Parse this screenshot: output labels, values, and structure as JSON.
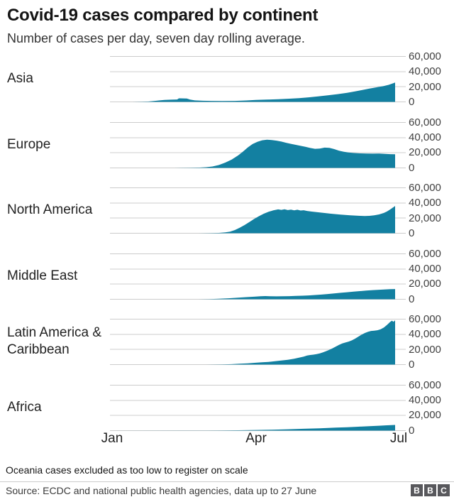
{
  "header": {
    "title": "Covid-19 cases compared by continent",
    "subtitle": "Number of cases per day, seven day rolling average."
  },
  "footnote": "Oceania cases excluded as too low to register on scale",
  "source": "Source: ECDC and national public health agencies, data up to 27 June",
  "logo": {
    "letters": [
      "B",
      "B",
      "C"
    ]
  },
  "colors": {
    "area_fill": "#1380a1",
    "gridline": "#cccccc",
    "title_text": "#141414",
    "tick_text": "#404040"
  },
  "chart_data": {
    "type": "area",
    "title": "Covid-19 cases compared by continent",
    "subtitle": "Number of cases per day, seven day rolling average.",
    "unit": "new cases per day, 7-day rolling average",
    "fill_color": "#1380a1",
    "grid": true,
    "x_axis": {
      "tick_labels": [
        "Jan",
        "Apr",
        "Jul"
      ],
      "tick_days": [
        0,
        91,
        182
      ],
      "domain_days_from_jan1": [
        0,
        182
      ],
      "data_end_day": 178,
      "data_end_label": "27 June"
    },
    "y_axis": {
      "ticks": [
        0,
        20000,
        40000,
        60000
      ],
      "tick_labels": [
        "0",
        "20,000",
        "40,000",
        "60,000"
      ],
      "max": 60000
    },
    "panels": [
      {
        "label": "Asia",
        "points": [
          [
            0,
            0
          ],
          [
            14,
            0
          ],
          [
            20,
            150
          ],
          [
            24,
            500
          ],
          [
            28,
            1300
          ],
          [
            31,
            2000
          ],
          [
            34,
            2500
          ],
          [
            38,
            2900
          ],
          [
            42,
            3200
          ],
          [
            43,
            4700
          ],
          [
            48,
            4500
          ],
          [
            50,
            3000
          ],
          [
            53,
            2000
          ],
          [
            58,
            1500
          ],
          [
            63,
            1300
          ],
          [
            70,
            1100
          ],
          [
            78,
            1300
          ],
          [
            85,
            1900
          ],
          [
            91,
            2500
          ],
          [
            98,
            3000
          ],
          [
            105,
            3500
          ],
          [
            112,
            4200
          ],
          [
            118,
            5000
          ],
          [
            124,
            6000
          ],
          [
            130,
            7200
          ],
          [
            136,
            8600
          ],
          [
            142,
            10200
          ],
          [
            148,
            12000
          ],
          [
            152,
            13500
          ],
          [
            157,
            15500
          ],
          [
            162,
            17500
          ],
          [
            167,
            19500
          ],
          [
            171,
            21000
          ],
          [
            174,
            22500
          ],
          [
            176,
            24000
          ],
          [
            178,
            25500
          ]
        ]
      },
      {
        "label": "Europe",
        "points": [
          [
            0,
            0
          ],
          [
            40,
            0
          ],
          [
            50,
            200
          ],
          [
            56,
            450
          ],
          [
            60,
            900
          ],
          [
            64,
            1900
          ],
          [
            68,
            3800
          ],
          [
            72,
            7000
          ],
          [
            76,
            11000
          ],
          [
            80,
            16500
          ],
          [
            83,
            21500
          ],
          [
            86,
            27000
          ],
          [
            89,
            31500
          ],
          [
            92,
            34500
          ],
          [
            95,
            36500
          ],
          [
            98,
            37200
          ],
          [
            101,
            36800
          ],
          [
            104,
            36000
          ],
          [
            107,
            34800
          ],
          [
            110,
            33200
          ],
          [
            113,
            31800
          ],
          [
            116,
            30500
          ],
          [
            119,
            29200
          ],
          [
            122,
            27800
          ],
          [
            125,
            26300
          ],
          [
            128,
            25200
          ],
          [
            131,
            25600
          ],
          [
            134,
            26800
          ],
          [
            137,
            26400
          ],
          [
            140,
            24800
          ],
          [
            143,
            22800
          ],
          [
            146,
            21300
          ],
          [
            149,
            20300
          ],
          [
            152,
            19700
          ],
          [
            156,
            19200
          ],
          [
            160,
            19000
          ],
          [
            164,
            18800
          ],
          [
            168,
            19000
          ],
          [
            172,
            18600
          ],
          [
            175,
            18200
          ],
          [
            178,
            18000
          ]
        ]
      },
      {
        "label": "North America",
        "points": [
          [
            0,
            0
          ],
          [
            55,
            0
          ],
          [
            63,
            200
          ],
          [
            68,
            500
          ],
          [
            72,
            1100
          ],
          [
            75,
            2200
          ],
          [
            78,
            4200
          ],
          [
            81,
            7200
          ],
          [
            84,
            10800
          ],
          [
            87,
            14800
          ],
          [
            90,
            18800
          ],
          [
            93,
            22500
          ],
          [
            96,
            25800
          ],
          [
            99,
            28300
          ],
          [
            102,
            30200
          ],
          [
            105,
            31500
          ],
          [
            107,
            30800
          ],
          [
            109,
            31600
          ],
          [
            111,
            30600
          ],
          [
            113,
            31200
          ],
          [
            115,
            30300
          ],
          [
            117,
            31000
          ],
          [
            119,
            30000
          ],
          [
            121,
            30400
          ],
          [
            123,
            29400
          ],
          [
            126,
            28600
          ],
          [
            129,
            27800
          ],
          [
            132,
            27200
          ],
          [
            135,
            26400
          ],
          [
            138,
            25800
          ],
          [
            141,
            25200
          ],
          [
            144,
            24700
          ],
          [
            147,
            24200
          ],
          [
            150,
            23700
          ],
          [
            153,
            23300
          ],
          [
            156,
            23000
          ],
          [
            159,
            22800
          ],
          [
            162,
            23000
          ],
          [
            165,
            23600
          ],
          [
            168,
            24800
          ],
          [
            171,
            26800
          ],
          [
            173,
            28800
          ],
          [
            175,
            31500
          ],
          [
            177,
            34500
          ],
          [
            178,
            36000
          ]
        ]
      },
      {
        "label": "Middle East",
        "points": [
          [
            0,
            0
          ],
          [
            55,
            0
          ],
          [
            62,
            300
          ],
          [
            68,
            700
          ],
          [
            74,
            1300
          ],
          [
            80,
            2100
          ],
          [
            85,
            2800
          ],
          [
            90,
            3400
          ],
          [
            94,
            3900
          ],
          [
            97,
            4200
          ],
          [
            100,
            4000
          ],
          [
            104,
            3800
          ],
          [
            108,
            3900
          ],
          [
            112,
            4100
          ],
          [
            116,
            4400
          ],
          [
            120,
            4700
          ],
          [
            124,
            5100
          ],
          [
            128,
            5600
          ],
          [
            132,
            6200
          ],
          [
            136,
            6900
          ],
          [
            140,
            7700
          ],
          [
            144,
            8500
          ],
          [
            148,
            9300
          ],
          [
            152,
            10000
          ],
          [
            156,
            10800
          ],
          [
            160,
            11500
          ],
          [
            164,
            12100
          ],
          [
            168,
            12600
          ],
          [
            172,
            13000
          ],
          [
            175,
            13300
          ],
          [
            178,
            13500
          ]
        ]
      },
      {
        "label": "Latin America & Caribbean",
        "points": [
          [
            0,
            0
          ],
          [
            60,
            0
          ],
          [
            70,
            250
          ],
          [
            76,
            600
          ],
          [
            81,
            1100
          ],
          [
            86,
            1700
          ],
          [
            91,
            2400
          ],
          [
            95,
            3000
          ],
          [
            99,
            3600
          ],
          [
            103,
            4400
          ],
          [
            107,
            5300
          ],
          [
            111,
            6400
          ],
          [
            115,
            7800
          ],
          [
            118,
            9200
          ],
          [
            121,
            10600
          ],
          [
            123,
            11900
          ],
          [
            125,
            12700
          ],
          [
            127,
            13100
          ],
          [
            129,
            13800
          ],
          [
            131,
            14800
          ],
          [
            133,
            16200
          ],
          [
            135,
            17800
          ],
          [
            137,
            19600
          ],
          [
            139,
            21600
          ],
          [
            141,
            23800
          ],
          [
            143,
            26000
          ],
          [
            145,
            27800
          ],
          [
            147,
            29200
          ],
          [
            149,
            30400
          ],
          [
            151,
            32000
          ],
          [
            153,
            34200
          ],
          [
            155,
            36800
          ],
          [
            157,
            39400
          ],
          [
            159,
            41600
          ],
          [
            161,
            43200
          ],
          [
            163,
            44400
          ],
          [
            165,
            44800
          ],
          [
            167,
            45400
          ],
          [
            169,
            46600
          ],
          [
            171,
            49000
          ],
          [
            173,
            52500
          ],
          [
            174,
            54500
          ],
          [
            175,
            56500
          ],
          [
            176,
            58000
          ],
          [
            177,
            56500
          ],
          [
            178,
            58500
          ]
        ]
      },
      {
        "label": "Africa",
        "points": [
          [
            0,
            0
          ],
          [
            60,
            50
          ],
          [
            70,
            200
          ],
          [
            80,
            450
          ],
          [
            91,
            800
          ],
          [
            101,
            1250
          ],
          [
            111,
            1800
          ],
          [
            121,
            2400
          ],
          [
            131,
            3100
          ],
          [
            141,
            3900
          ],
          [
            148,
            4500
          ],
          [
            155,
            5200
          ],
          [
            162,
            5900
          ],
          [
            168,
            6500
          ],
          [
            173,
            7000
          ],
          [
            178,
            7500
          ]
        ]
      }
    ]
  }
}
